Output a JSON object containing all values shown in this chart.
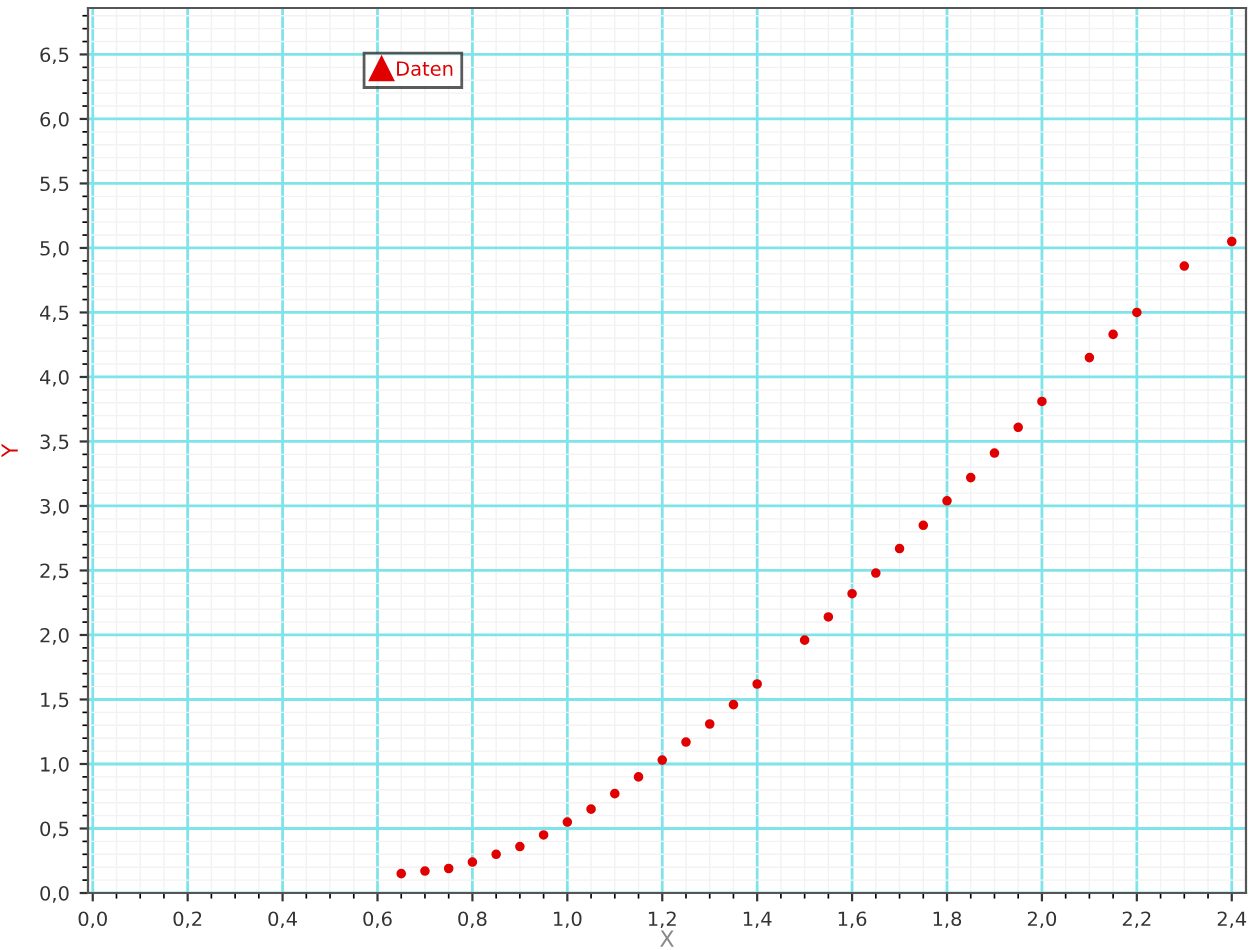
{
  "chart_data": {
    "type": "scatter",
    "xlabel": "X",
    "ylabel": "Y",
    "x": [
      0.65,
      0.7,
      0.75,
      0.8,
      0.85,
      0.9,
      0.95,
      1.0,
      1.05,
      1.1,
      1.15,
      1.2,
      1.25,
      1.3,
      1.35,
      1.4,
      1.5,
      1.55,
      1.6,
      1.65,
      1.7,
      1.75,
      1.8,
      1.85,
      1.9,
      1.95,
      2.0,
      2.1,
      2.15,
      2.2,
      2.3,
      2.4
    ],
    "series": [
      {
        "name": "Daten",
        "color": "#e00000",
        "values": [
          0.15,
          0.17,
          0.19,
          0.24,
          0.3,
          0.36,
          0.45,
          0.55,
          0.65,
          0.77,
          0.9,
          1.03,
          1.17,
          1.31,
          1.46,
          1.62,
          1.96,
          2.14,
          2.32,
          2.48,
          2.67,
          2.85,
          3.04,
          3.22,
          3.41,
          3.61,
          3.81,
          4.15,
          4.33,
          4.5,
          4.86,
          5.05
        ]
      }
    ],
    "xlim": [
      -0.01,
      2.43
    ],
    "ylim": [
      0,
      6.86
    ],
    "xticks": [
      {
        "value": 0,
        "label": "0,0"
      },
      {
        "value": 0.2,
        "label": "0,2"
      },
      {
        "value": 0.4,
        "label": "0,4"
      },
      {
        "value": 0.6,
        "label": "0,6"
      },
      {
        "value": 0.8,
        "label": "0,8"
      },
      {
        "value": 1.0,
        "label": "1,0"
      },
      {
        "value": 1.2,
        "label": "1,2"
      },
      {
        "value": 1.4,
        "label": "1,4"
      },
      {
        "value": 1.6,
        "label": "1,6"
      },
      {
        "value": 1.8,
        "label": "1,8"
      },
      {
        "value": 2.0,
        "label": "2,0"
      },
      {
        "value": 2.2,
        "label": "2,2"
      },
      {
        "value": 2.4,
        "label": "2,4"
      }
    ],
    "yticks": [
      {
        "value": 0,
        "label": "0,0"
      },
      {
        "value": 0.5,
        "label": "0,5"
      },
      {
        "value": 1.0,
        "label": "1,0"
      },
      {
        "value": 1.5,
        "label": "1,5"
      },
      {
        "value": 2.0,
        "label": "2,0"
      },
      {
        "value": 2.5,
        "label": "2,5"
      },
      {
        "value": 3.0,
        "label": "3,0"
      },
      {
        "value": 3.5,
        "label": "3,5"
      },
      {
        "value": 4.0,
        "label": "4,0"
      },
      {
        "value": 4.5,
        "label": "4,5"
      },
      {
        "value": 5.0,
        "label": "5,0"
      },
      {
        "value": 5.5,
        "label": "5,5"
      },
      {
        "value": 6.0,
        "label": "6,0"
      },
      {
        "value": 6.5,
        "label": "6,5"
      }
    ],
    "grid": true,
    "legend": "top left",
    "marker": "circle"
  }
}
